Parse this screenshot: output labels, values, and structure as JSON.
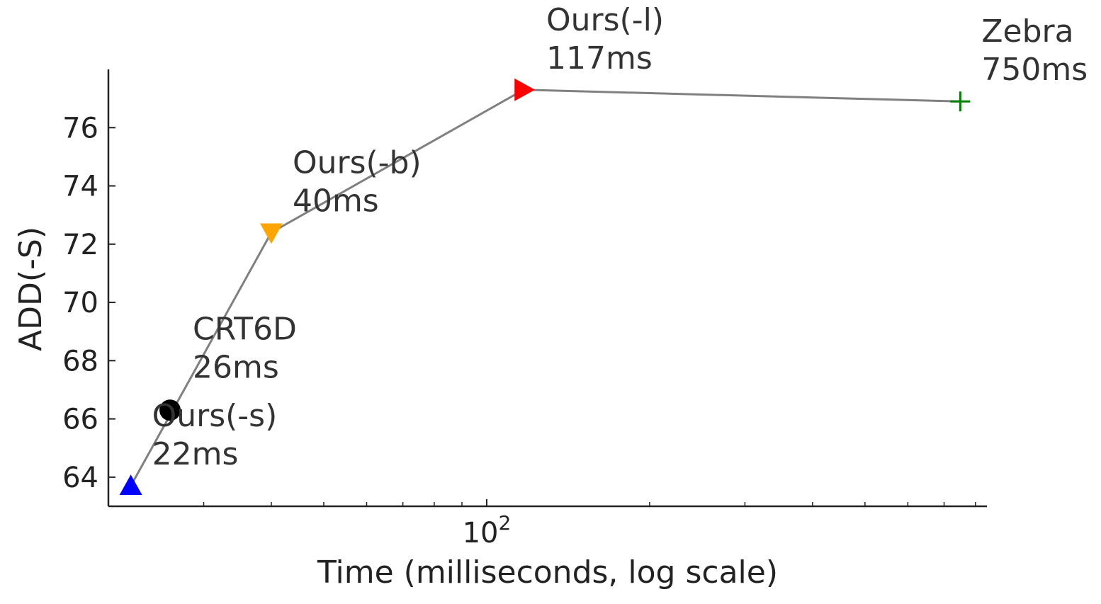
{
  "chart_data": {
    "type": "scatter",
    "title": "",
    "xlabel": "Time (milliseconds, log scale)",
    "ylabel": "ADD(-S)",
    "x_scale": "log",
    "xlim": [
      20,
      840
    ],
    "ylim": [
      63.0,
      78.0
    ],
    "grid": false,
    "legend": "none",
    "connecting_line": {
      "color": "#808080"
    },
    "x_tick_labels": [
      {
        "value": 100,
        "base": "10",
        "exp": "2"
      }
    ],
    "y_ticks": [
      64,
      66,
      68,
      70,
      72,
      74,
      76
    ],
    "points": [
      {
        "name": "Ours(-s)",
        "time_label": "22ms",
        "x": 22,
        "y": 63.7,
        "marker": "triangle-up",
        "color": "#0000ff",
        "on_line": true
      },
      {
        "name": "CRT6D",
        "time_label": "26ms",
        "x": 26,
        "y": 66.3,
        "marker": "circle",
        "color": "#000000",
        "on_line": false
      },
      {
        "name": "Ours(-b)",
        "time_label": "40ms",
        "x": 40,
        "y": 72.4,
        "marker": "triangle-down",
        "color": "#ffa500",
        "on_line": true
      },
      {
        "name": "Ours(-l)",
        "time_label": "117ms",
        "x": 117,
        "y": 77.3,
        "marker": "triangle-right",
        "color": "#ff0000",
        "on_line": true
      },
      {
        "name": "Zebra",
        "time_label": "750ms",
        "x": 750,
        "y": 76.9,
        "marker": "plus",
        "color": "#008000",
        "on_line": true
      }
    ]
  }
}
